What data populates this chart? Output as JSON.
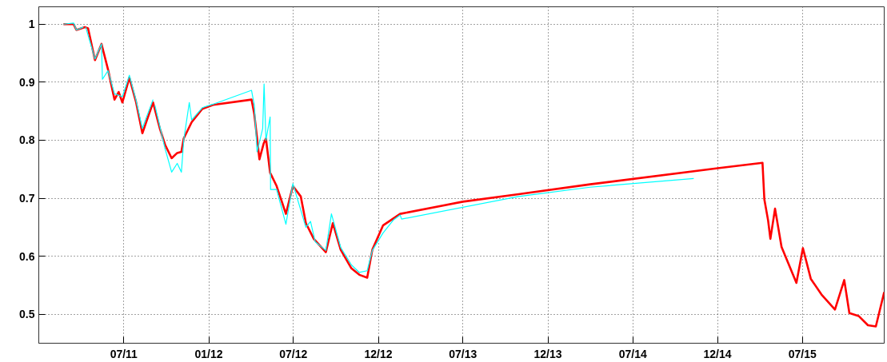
{
  "chart_data": {
    "type": "line",
    "xlim": [
      "2010-12-30",
      "2015-12-24"
    ],
    "xticks": [
      {
        "value": "2011-07-01",
        "label": "07/11"
      },
      {
        "value": "2011-12-31",
        "label": "01/12"
      },
      {
        "value": "2012-06-30",
        "label": "07/12"
      },
      {
        "value": "2012-12-30",
        "label": "12/12"
      },
      {
        "value": "2013-06-30",
        "label": "07/13"
      },
      {
        "value": "2013-12-30",
        "label": "12/13"
      },
      {
        "value": "2014-07-01",
        "label": "07/14"
      },
      {
        "value": "2014-12-30",
        "label": "12/14"
      },
      {
        "value": "2015-07-01",
        "label": "07/15"
      }
    ],
    "ylim": [
      0.45,
      1.03
    ],
    "yticks": [
      0.5,
      0.6,
      0.7,
      0.8,
      0.9,
      1
    ],
    "grid": true,
    "line_style": "solid",
    "series": [
      {
        "color": "#ff0000",
        "x": [
          "2011-02-21",
          "2011-03-15",
          "2011-03-21",
          "2011-04-08",
          "2011-04-15",
          "2011-04-30",
          "2011-05-14",
          "2011-05-28",
          "2011-06-11",
          "2011-06-20",
          "2011-06-28",
          "2011-07-13",
          "2011-07-27",
          "2011-08-10",
          "2011-08-19",
          "2011-09-02",
          "2011-09-17",
          "2011-09-28",
          "2011-10-12",
          "2011-10-24",
          "2011-11-02",
          "2011-11-07",
          "2011-11-24",
          "2011-12-17",
          "2012-01-09",
          "2012-04-01",
          "2012-04-07",
          "2012-04-18",
          "2012-04-27",
          "2012-05-02",
          "2012-05-11",
          "2012-05-25",
          "2012-06-14",
          "2012-06-29",
          "2012-07-16",
          "2012-07-27",
          "2012-08-13",
          "2012-09-08",
          "2012-09-23",
          "2012-10-10",
          "2012-11-02",
          "2012-11-19",
          "2012-12-06",
          "2012-12-17",
          "2013-01-09",
          "2013-02-15",
          "2013-06-30",
          "2013-10-28",
          "2014-03-31",
          "2015-01-03",
          "2015-04-06",
          "2015-04-10",
          "2015-04-18",
          "2015-04-23",
          "2015-05-03",
          "2015-05-17",
          "2015-06-18",
          "2015-07-02",
          "2015-07-19",
          "2015-08-11",
          "2015-09-09",
          "2015-09-29",
          "2015-10-10",
          "2015-10-30",
          "2015-11-19",
          "2015-12-06",
          "2015-12-24"
        ],
        "values": [
          1.0,
          1.0,
          0.99,
          0.995,
          0.993,
          0.938,
          0.966,
          0.922,
          0.87,
          0.883,
          0.865,
          0.908,
          0.867,
          0.812,
          0.833,
          0.865,
          0.819,
          0.792,
          0.769,
          0.778,
          0.78,
          0.803,
          0.831,
          0.854,
          0.861,
          0.87,
          0.845,
          0.767,
          0.794,
          0.803,
          0.744,
          0.721,
          0.673,
          0.721,
          0.703,
          0.657,
          0.63,
          0.607,
          0.657,
          0.611,
          0.579,
          0.568,
          0.563,
          0.611,
          0.653,
          0.673,
          0.694,
          0.707,
          0.724,
          0.752,
          0.761,
          0.698,
          0.662,
          0.63,
          0.682,
          0.616,
          0.554,
          0.614,
          0.561,
          0.534,
          0.508,
          0.559,
          0.502,
          0.497,
          0.481,
          0.479,
          0.538
        ]
      },
      {
        "color": "#00ffff",
        "x": [
          "2011-02-21",
          "2011-03-15",
          "2011-03-21",
          "2011-04-05",
          "2011-04-08",
          "2011-04-10",
          "2011-04-30",
          "2011-05-14",
          "2011-05-16",
          "2011-05-28",
          "2011-06-11",
          "2011-06-28",
          "2011-07-13",
          "2011-07-27",
          "2011-08-10",
          "2011-08-19",
          "2011-09-02",
          "2011-09-04",
          "2011-09-06",
          "2011-09-28",
          "2011-10-12",
          "2011-10-24",
          "2011-11-02",
          "2011-11-07",
          "2011-11-19",
          "2011-11-24",
          "2011-12-17",
          "2012-01-09",
          "2012-04-01",
          "2012-04-07",
          "2012-04-13",
          "2012-04-25",
          "2012-04-28",
          "2012-05-02",
          "2012-05-11",
          "2012-05-12",
          "2012-05-25",
          "2012-06-14",
          "2012-06-29",
          "2012-07-27",
          "2012-08-06",
          "2012-08-16",
          "2012-09-08",
          "2012-09-20",
          "2012-10-10",
          "2012-11-02",
          "2012-11-19",
          "2012-12-06",
          "2012-12-17",
          "2013-01-09",
          "2013-02-01",
          "2013-02-15",
          "2013-02-18",
          "2013-10-28",
          "2014-03-31",
          "2014-11-09"
        ],
        "values": [
          1.0,
          1.002,
          0.99,
          0.995,
          null,
          0.995,
          0.94,
          0.966,
          0.905,
          0.92,
          0.88,
          0.875,
          0.912,
          0.87,
          0.82,
          0.84,
          0.87,
          null,
          0.86,
          0.785,
          0.745,
          0.76,
          0.745,
          0.8,
          0.865,
          0.835,
          0.856,
          0.862,
          0.886,
          0.86,
          0.78,
          0.82,
          0.897,
          0.8,
          0.84,
          0.715,
          0.715,
          0.655,
          0.725,
          0.65,
          0.66,
          0.625,
          0.61,
          0.673,
          0.615,
          0.585,
          0.572,
          0.575,
          0.61,
          0.64,
          0.663,
          0.671,
          0.664,
          0.703,
          0.719,
          0.734
        ]
      }
    ]
  }
}
